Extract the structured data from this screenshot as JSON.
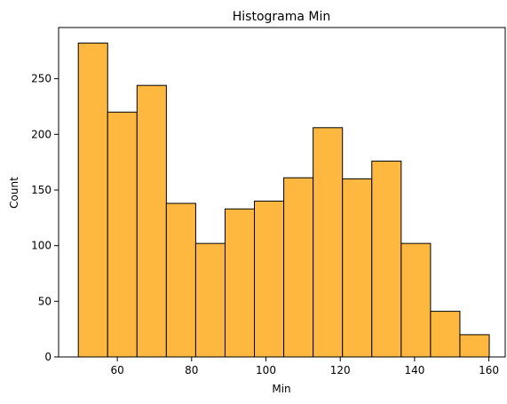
{
  "chart_data": {
    "type": "bar",
    "title": "Histograma Min",
    "xlabel": "Min",
    "ylabel": "Count",
    "bin_edges": [
      49.5,
      57.4,
      65.3,
      73.2,
      81.1,
      89.0,
      96.9,
      104.8,
      112.7,
      120.6,
      128.5,
      136.4,
      144.3,
      152.2,
      160.1
    ],
    "values": [
      282,
      220,
      244,
      138,
      102,
      133,
      140,
      161,
      206,
      160,
      176,
      102,
      41,
      20
    ],
    "xlim": [
      44.2,
      164.4
    ],
    "ylim": [
      0,
      296
    ],
    "x_ticks": [
      60,
      80,
      100,
      120,
      140,
      160
    ],
    "y_ticks": [
      0,
      50,
      100,
      150,
      200,
      250
    ],
    "x_tick_labels": [
      "60",
      "80",
      "100",
      "120",
      "140",
      "160"
    ],
    "y_tick_labels": [
      "0",
      "50",
      "100",
      "150",
      "200",
      "250"
    ],
    "bar_color": "#ffb83f",
    "edge_color": "#000000",
    "grid": false,
    "legend": "none"
  }
}
